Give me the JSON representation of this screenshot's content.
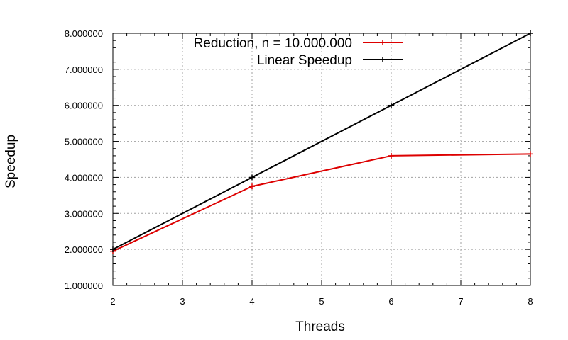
{
  "chart_data": {
    "type": "line",
    "xlabel": "Threads",
    "ylabel": "Speedup",
    "xlim": [
      2,
      8
    ],
    "ylim": [
      1,
      8
    ],
    "x_ticks": [
      2,
      3,
      4,
      5,
      6,
      7,
      8
    ],
    "x_tick_labels": [
      "2",
      "3",
      "4",
      "5",
      "6",
      "7",
      "8"
    ],
    "y_ticks": [
      1,
      2,
      3,
      4,
      5,
      6,
      7,
      8
    ],
    "y_tick_labels": [
      "1.000000",
      "2.000000",
      "3.000000",
      "4.000000",
      "5.000000",
      "6.000000",
      "7.000000",
      "8.000000"
    ],
    "grid": true,
    "legend_position": "top",
    "series": [
      {
        "name": "Reduction, n = 10.000.000",
        "color": "#dd0000",
        "marker": "plus",
        "x": [
          2,
          4,
          6,
          8
        ],
        "y": [
          1.95,
          3.75,
          4.6,
          4.65
        ]
      },
      {
        "name": "Linear Speedup",
        "color": "#000000",
        "marker": "plus",
        "x": [
          2,
          4,
          6,
          8
        ],
        "y": [
          2,
          4,
          6,
          8
        ]
      }
    ]
  }
}
